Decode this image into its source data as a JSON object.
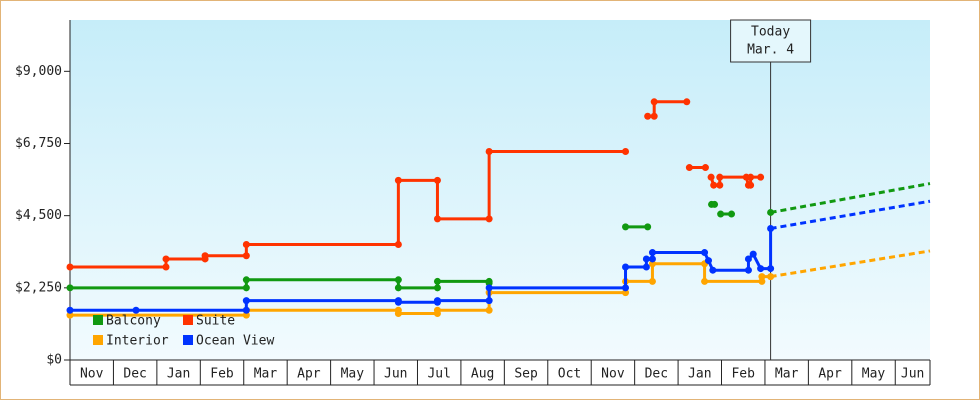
{
  "chart_data": {
    "type": "line",
    "annotation": {
      "lines": [
        "Today",
        "Mar. 4"
      ],
      "x": 16.13
    },
    "categories": [
      "Nov",
      "Dec",
      "Jan",
      "Feb",
      "Mar",
      "Apr",
      "May",
      "Jun",
      "Jul",
      "Aug",
      "Sep",
      "Oct",
      "Nov",
      "Dec",
      "Jan",
      "Feb",
      "Mar",
      "Apr",
      "May",
      "Jun"
    ],
    "xlim": [
      0,
      19.8
    ],
    "ylim": [
      0,
      10600
    ],
    "yticks": [
      {
        "value": 0,
        "label": "$0"
      },
      {
        "value": 2250,
        "label": "$2,250"
      },
      {
        "value": 4500,
        "label": "$4,500"
      },
      {
        "value": 6750,
        "label": "$6,750"
      },
      {
        "value": 9000,
        "label": "$9,000"
      }
    ],
    "series": [
      {
        "name": "Balcony",
        "color": "#119911",
        "x": [
          0,
          4.06,
          4.06,
          7.56,
          7.56,
          8.46,
          8.46,
          9.65,
          9.65,
          null,
          12.79,
          13.3,
          null,
          14.77,
          14.84,
          null,
          14.98,
          15.23,
          null,
          16.13
        ],
        "values": [
          2250,
          2250,
          2500,
          2500,
          2250,
          2250,
          2450,
          2450,
          2400,
          null,
          4150,
          4150,
          null,
          4850,
          4850,
          null,
          4550,
          4550,
          null,
          4600
        ],
        "forecast_x": [
          16.13,
          19.8
        ],
        "forecast": [
          4600,
          5500
        ]
      },
      {
        "name": "Suite",
        "color": "#ff3300",
        "x": [
          0,
          2.21,
          2.21,
          3.11,
          3.11,
          4.06,
          4.06,
          7.56,
          7.56,
          8.46,
          8.46,
          9.65,
          9.65,
          12.79,
          null,
          13.3,
          13.45,
          13.45,
          14.2,
          null,
          14.26,
          14.63,
          null,
          14.76,
          14.82,
          14.96,
          14.96,
          15.57,
          15.62,
          15.67,
          15.67,
          15.9
        ],
        "values": [
          2900,
          2900,
          3150,
          3150,
          3250,
          3250,
          3600,
          3600,
          5600,
          5600,
          4400,
          4400,
          6500,
          6500,
          null,
          7600,
          7600,
          8050,
          8050,
          null,
          6000,
          6000,
          null,
          5700,
          5450,
          5450,
          5700,
          5700,
          5450,
          5450,
          5700,
          5700
        ]
      },
      {
        "name": "Interior",
        "color": "#ffa500",
        "x": [
          0,
          4.06,
          4.06,
          7.56,
          7.56,
          8.46,
          8.46,
          9.65,
          9.65,
          12.79,
          12.79,
          13.41,
          13.41,
          14.61,
          14.61,
          15.93,
          15.93,
          16.13
        ],
        "values": [
          1400,
          1400,
          1550,
          1550,
          1450,
          1450,
          1550,
          1550,
          2100,
          2100,
          2450,
          2450,
          3000,
          3000,
          2450,
          2450,
          2600,
          2600
        ],
        "forecast_x": [
          16.13,
          19.8
        ],
        "forecast": [
          2600,
          3400
        ]
      },
      {
        "name": "Ocean View",
        "color": "#0033ff",
        "x": [
          0,
          1.52,
          4.06,
          4.06,
          7.56,
          7.56,
          8.46,
          8.46,
          9.65,
          9.65,
          12.79,
          12.79,
          13.27,
          13.27,
          13.41,
          13.41,
          14.61,
          14.7,
          14.8,
          15.62,
          15.62,
          15.73,
          15.9,
          16.13,
          16.13
        ],
        "values": [
          1550,
          1550,
          1550,
          1850,
          1850,
          1800,
          1800,
          1850,
          1850,
          2250,
          2250,
          2900,
          2900,
          3150,
          3150,
          3350,
          3350,
          3100,
          2800,
          2800,
          3150,
          3300,
          2850,
          2850,
          4100
        ],
        "forecast_x": [
          16.13,
          19.8
        ],
        "forecast": [
          4100,
          4950
        ]
      }
    ]
  }
}
